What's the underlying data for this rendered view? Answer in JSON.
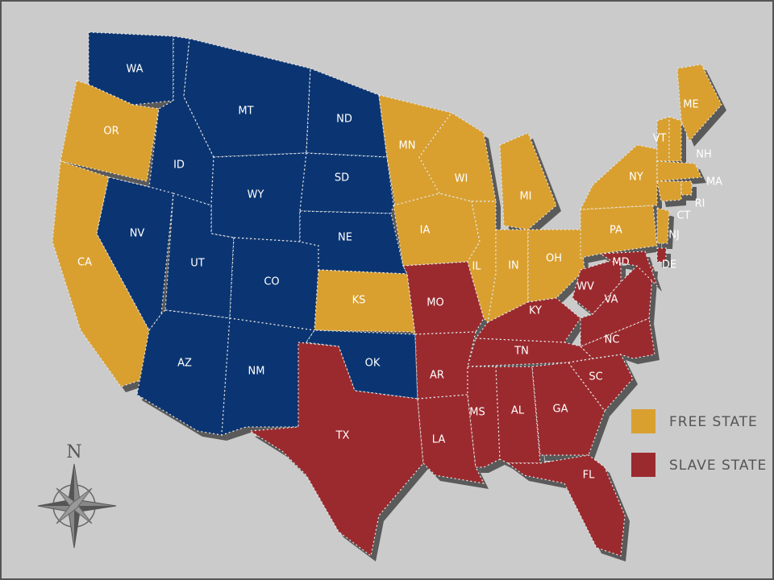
{
  "map": {
    "states": [
      {
        "label": "WA",
        "color": "#0b3572"
      },
      {
        "label": "OR",
        "color": "#d9a030"
      },
      {
        "label": "CA",
        "color": "#d9a030"
      },
      {
        "label": "ID",
        "color": "#0b3572"
      },
      {
        "label": "NV",
        "color": "#0b3572"
      },
      {
        "label": "MT",
        "color": "#0b3572"
      },
      {
        "label": "WY",
        "color": "#0b3572"
      },
      {
        "label": "UT",
        "color": "#0b3572"
      },
      {
        "label": "CO",
        "color": "#0b3572"
      },
      {
        "label": "AZ",
        "color": "#0b3572"
      },
      {
        "label": "NM",
        "color": "#0b3572"
      },
      {
        "label": "ND",
        "color": "#0b3572"
      },
      {
        "label": "SD",
        "color": "#0b3572"
      },
      {
        "label": "NE",
        "color": "#0b3572"
      },
      {
        "label": "KS",
        "color": "#d9a030"
      },
      {
        "label": "OK",
        "color": "#0b3572"
      },
      {
        "label": "TX",
        "color": "#9b2a2e"
      },
      {
        "label": "MN",
        "color": "#d9a030"
      },
      {
        "label": "IA",
        "color": "#d9a030"
      },
      {
        "label": "MO",
        "color": "#9b2a2e"
      },
      {
        "label": "AR",
        "color": "#9b2a2e"
      },
      {
        "label": "LA",
        "color": "#9b2a2e"
      },
      {
        "label": "WI",
        "color": "#d9a030"
      },
      {
        "label": "IL",
        "color": "#d9a030"
      },
      {
        "label": "MI",
        "color": "#d9a030"
      },
      {
        "label": "IN",
        "color": "#d9a030"
      },
      {
        "label": "OH",
        "color": "#d9a030"
      },
      {
        "label": "KY",
        "color": "#9b2a2e"
      },
      {
        "label": "TN",
        "color": "#9b2a2e"
      },
      {
        "label": "MS",
        "color": "#9b2a2e"
      },
      {
        "label": "AL",
        "color": "#9b2a2e"
      },
      {
        "label": "GA",
        "color": "#9b2a2e"
      },
      {
        "label": "FL",
        "color": "#9b2a2e"
      },
      {
        "label": "SC",
        "color": "#9b2a2e"
      },
      {
        "label": "NC",
        "color": "#9b2a2e"
      },
      {
        "label": "VA",
        "color": "#9b2a2e"
      },
      {
        "label": "WV",
        "color": "#9b2a2e"
      },
      {
        "label": "MD",
        "color": "#9b2a2e"
      },
      {
        "label": "PA",
        "color": "#d9a030"
      },
      {
        "label": "NY",
        "color": "#d9a030"
      },
      {
        "label": "VT",
        "color": "#d9a030"
      },
      {
        "label": "NH",
        "color": "#d9a030"
      },
      {
        "label": "ME",
        "color": "#d9a030"
      },
      {
        "label": "MA",
        "color": "#d9a030"
      },
      {
        "label": "CT",
        "color": "#d9a030"
      },
      {
        "label": "RI",
        "color": "#d9a030"
      },
      {
        "label": "NJ",
        "color": "#d9a030"
      },
      {
        "label": "DE",
        "color": "#9b2a2e"
      }
    ],
    "legend": [
      {
        "label": "FREE STATE",
        "color": "#d9a030"
      },
      {
        "label": "SLAVE STATE",
        "color": "#9b2a2e"
      }
    ],
    "compass": {
      "label": "N"
    }
  }
}
